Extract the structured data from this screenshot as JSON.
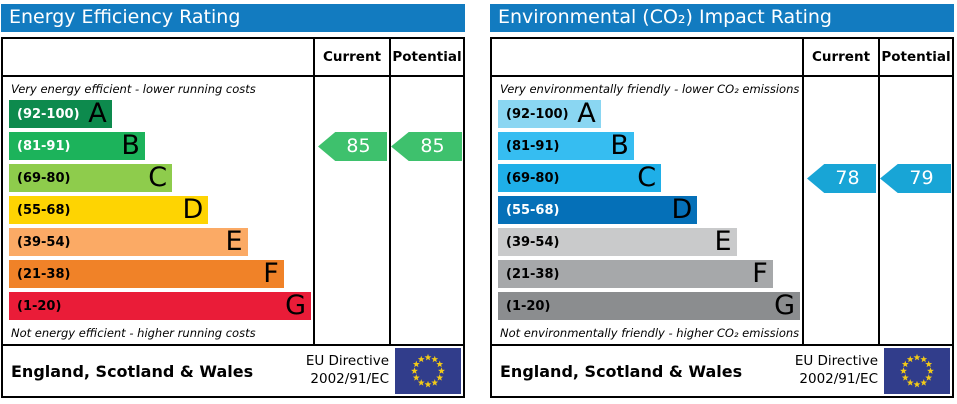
{
  "panels": [
    {
      "title": "Energy Efficiency Rating",
      "columns": {
        "current": "Current",
        "potential": "Potential"
      },
      "top_note": "Very energy efficient - lower running costs",
      "bottom_note": "Not energy efficient - higher running costs",
      "bands": [
        {
          "range": "(92-100)",
          "letter": "A",
          "color": "#0d8a4d",
          "label_color": "#ffffff",
          "width_pct": 34
        },
        {
          "range": "(81-91)",
          "letter": "B",
          "color": "#1cb35b",
          "label_color": "#ffffff",
          "width_pct": 45
        },
        {
          "range": "(69-80)",
          "letter": "C",
          "color": "#8ecc4c",
          "label_color": "#000000",
          "width_pct": 54
        },
        {
          "range": "(55-68)",
          "letter": "D",
          "color": "#fed402",
          "label_color": "#000000",
          "width_pct": 66
        },
        {
          "range": "(39-54)",
          "letter": "E",
          "color": "#fbaa65",
          "label_color": "#000000",
          "width_pct": 79
        },
        {
          "range": "(21-38)",
          "letter": "F",
          "color": "#f08228",
          "label_color": "#000000",
          "width_pct": 91
        },
        {
          "range": "(1-20)",
          "letter": "G",
          "color": "#ea1c38",
          "label_color": "#000000",
          "width_pct": 100
        }
      ],
      "current": {
        "value": "85",
        "band_index": 1,
        "color": "#3ec16d"
      },
      "potential": {
        "value": "85",
        "band_index": 1,
        "color": "#3ec16d"
      },
      "footer": {
        "region": "England, Scotland & Wales",
        "directive_line1": "EU Directive",
        "directive_line2": "2002/91/EC"
      }
    },
    {
      "title": "Environmental (CO₂) Impact Rating",
      "columns": {
        "current": "Current",
        "potential": "Potential"
      },
      "top_note": "Very environmentally friendly - lower CO₂ emissions",
      "bottom_note": "Not environmentally friendly - higher CO₂ emissions",
      "bands": [
        {
          "range": "(92-100)",
          "letter": "A",
          "color": "#8ad6f2",
          "label_color": "#000000",
          "width_pct": 34
        },
        {
          "range": "(81-91)",
          "letter": "B",
          "color": "#36bdf1",
          "label_color": "#000000",
          "width_pct": 45
        },
        {
          "range": "(69-80)",
          "letter": "C",
          "color": "#1fafe8",
          "label_color": "#000000",
          "width_pct": 54
        },
        {
          "range": "(55-68)",
          "letter": "D",
          "color": "#0570b8",
          "label_color": "#ffffff",
          "width_pct": 66
        },
        {
          "range": "(39-54)",
          "letter": "E",
          "color": "#c9cacb",
          "label_color": "#000000",
          "width_pct": 79
        },
        {
          "range": "(21-38)",
          "letter": "F",
          "color": "#a6a8aa",
          "label_color": "#000000",
          "width_pct": 91
        },
        {
          "range": "(1-20)",
          "letter": "G",
          "color": "#8b8d8f",
          "label_color": "#000000",
          "width_pct": 100
        }
      ],
      "current": {
        "value": "78",
        "band_index": 2,
        "color": "#18a5d6"
      },
      "potential": {
        "value": "79",
        "band_index": 2,
        "color": "#18a5d6"
      },
      "footer": {
        "region": "England, Scotland & Wales",
        "directive_line1": "EU Directive",
        "directive_line2": "2002/91/EC"
      }
    }
  ],
  "chart_data": [
    {
      "type": "bar",
      "title": "Energy Efficiency Rating",
      "categories": [
        "A (92-100)",
        "B (81-91)",
        "C (69-80)",
        "D (55-68)",
        "E (39-54)",
        "F (21-38)",
        "G (1-20)"
      ],
      "band_widths_pct": [
        34,
        45,
        54,
        66,
        79,
        91,
        100
      ],
      "series": [
        {
          "name": "Current",
          "values": [
            85
          ],
          "band": "B"
        },
        {
          "name": "Potential",
          "values": [
            85
          ],
          "band": "B"
        }
      ],
      "scale_range": [
        1,
        100
      ],
      "annotations": [
        "Very energy efficient - lower running costs",
        "Not energy efficient - higher running costs"
      ],
      "footer": "England, Scotland & Wales — EU Directive 2002/91/EC"
    },
    {
      "type": "bar",
      "title": "Environmental (CO₂) Impact Rating",
      "categories": [
        "A (92-100)",
        "B (81-91)",
        "C (69-80)",
        "D (55-68)",
        "E (39-54)",
        "F (21-38)",
        "G (1-20)"
      ],
      "band_widths_pct": [
        34,
        45,
        54,
        66,
        79,
        91,
        100
      ],
      "series": [
        {
          "name": "Current",
          "values": [
            78
          ],
          "band": "C"
        },
        {
          "name": "Potential",
          "values": [
            79
          ],
          "band": "C"
        }
      ],
      "scale_range": [
        1,
        100
      ],
      "annotations": [
        "Very environmentally friendly - lower CO₂ emissions",
        "Not environmentally friendly - higher CO₂ emissions"
      ],
      "footer": "England, Scotland & Wales — EU Directive 2002/91/EC"
    }
  ]
}
